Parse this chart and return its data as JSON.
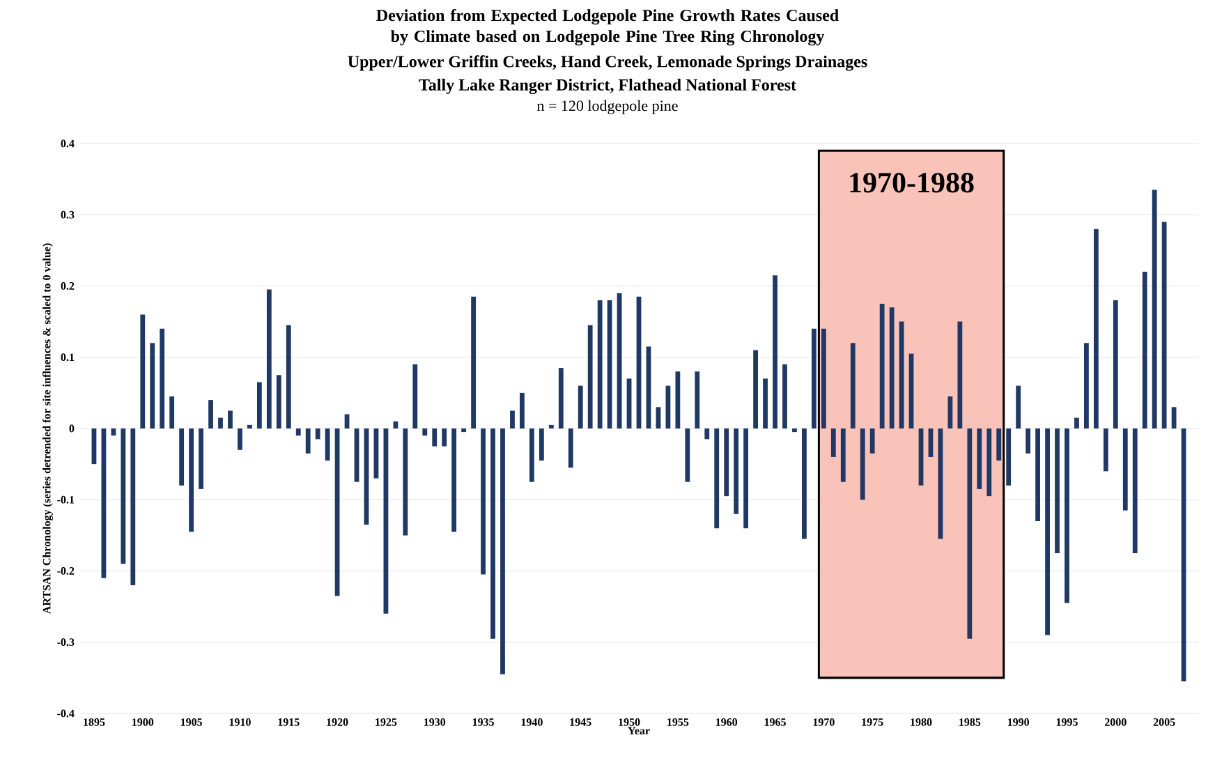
{
  "chart_data": {
    "type": "bar",
    "title": "Deviation from Expected Lodgepole Pine Growth Rates Caused by Climate based on Lodgepole Pine Tree Ring Chronology",
    "subtitle": "Upper/Lower Griffin Creeks, Hand Creek, Lemonade Springs Drainages",
    "annotations": [
      "Tally Lake Ranger District, Flathead National Forest",
      "n = 120 lodgepole pine"
    ],
    "xlabel": "Year",
    "ylabel": "ARTSAN Chronology (series detrended for site influences & scaled to 0 value)",
    "x": [
      1895,
      1896,
      1897,
      1898,
      1899,
      1900,
      1901,
      1902,
      1903,
      1904,
      1905,
      1906,
      1907,
      1908,
      1909,
      1910,
      1911,
      1912,
      1913,
      1914,
      1915,
      1916,
      1917,
      1918,
      1919,
      1920,
      1921,
      1922,
      1923,
      1924,
      1925,
      1926,
      1927,
      1928,
      1929,
      1930,
      1931,
      1932,
      1933,
      1934,
      1935,
      1936,
      1937,
      1938,
      1939,
      1940,
      1941,
      1942,
      1943,
      1944,
      1945,
      1946,
      1947,
      1948,
      1949,
      1950,
      1951,
      1952,
      1953,
      1954,
      1955,
      1956,
      1957,
      1958,
      1959,
      1960,
      1961,
      1962,
      1963,
      1964,
      1965,
      1966,
      1967,
      1968,
      1969,
      1970,
      1971,
      1972,
      1973,
      1974,
      1975,
      1976,
      1977,
      1978,
      1979,
      1980,
      1981,
      1982,
      1983,
      1984,
      1985,
      1986,
      1987,
      1988,
      1989,
      1990,
      1991,
      1992,
      1993,
      1994,
      1995,
      1996,
      1997,
      1998,
      1999,
      2000,
      2001,
      2002,
      2003,
      2004,
      2005,
      2006,
      2007
    ],
    "values": [
      -0.05,
      -0.21,
      -0.01,
      -0.19,
      -0.22,
      0.16,
      0.12,
      0.14,
      0.045,
      -0.08,
      -0.145,
      -0.085,
      0.04,
      0.015,
      0.025,
      -0.03,
      0.005,
      0.065,
      0.195,
      0.075,
      0.145,
      -0.01,
      -0.035,
      -0.015,
      -0.045,
      -0.235,
      0.02,
      -0.075,
      -0.135,
      -0.07,
      -0.26,
      0.01,
      -0.15,
      0.09,
      -0.01,
      -0.025,
      -0.025,
      -0.145,
      -0.005,
      0.185,
      -0.205,
      -0.295,
      -0.345,
      0.025,
      0.05,
      -0.075,
      -0.045,
      0.005,
      0.085,
      -0.055,
      0.06,
      0.145,
      0.18,
      0.18,
      0.19,
      0.07,
      0.185,
      0.115,
      0.03,
      0.06,
      0.08,
      -0.075,
      0.08,
      -0.015,
      -0.14,
      -0.095,
      -0.12,
      -0.14,
      0.11,
      0.07,
      0.215,
      0.09,
      -0.005,
      -0.155,
      0.14,
      0.14,
      -0.04,
      -0.075,
      0.12,
      -0.1,
      -0.035,
      0.175,
      0.17,
      0.15,
      0.105,
      -0.08,
      -0.04,
      -0.155,
      0.045,
      0.15,
      -0.295,
      -0.085,
      -0.095,
      -0.045,
      -0.08,
      0.06,
      -0.035,
      -0.13,
      -0.29,
      -0.175,
      -0.245,
      0.015,
      0.12,
      0.28,
      -0.06,
      0.18,
      -0.115,
      -0.175,
      0.22,
      0.335,
      0.29,
      0.03,
      -0.355
    ],
    "color": "#1f3864",
    "xlim": [
      1893.5,
      2008.5
    ],
    "xticks": [
      1895,
      1900,
      1905,
      1910,
      1915,
      1920,
      1925,
      1930,
      1935,
      1940,
      1945,
      1950,
      1955,
      1960,
      1965,
      1970,
      1975,
      1980,
      1985,
      1990,
      1995,
      2000,
      2005
    ],
    "ylim": [
      -0.4,
      0.4
    ],
    "yticks": [
      -0.4,
      -0.3,
      -0.2,
      -0.1,
      0,
      0.1,
      0.2,
      0.3,
      0.4
    ],
    "grid": "y",
    "bands": [
      {
        "axis": "x",
        "from": 1969.5,
        "to": 1988.5,
        "label": "1970-1988",
        "color": "#f9c3b9"
      }
    ]
  }
}
